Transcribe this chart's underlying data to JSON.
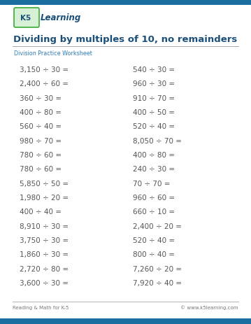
{
  "title": "Dividing by multiples of 10, no remainders",
  "subtitle": "Division Practice Worksheet",
  "footer_left": "Reading & Math for K-5",
  "footer_right": "© www.k5learning.com",
  "logo_k5": "K5",
  "logo_learning": "Learning",
  "left_problems": [
    "3,150 ÷ 30 =",
    "2,400 ÷ 60 =",
    "360 ÷ 30 =",
    "400 ÷ 80 =",
    "560 ÷ 40 =",
    "980 ÷ 70 =",
    "780 ÷ 60 =",
    "780 ÷ 60 =",
    "5,850 ÷ 50 =",
    "1,980 ÷ 20 =",
    "400 ÷ 40 =",
    "8,910 ÷ 30 =",
    "3,750 ÷ 30 =",
    "1,860 ÷ 30 =",
    "2,720 ÷ 80 =",
    "3,600 ÷ 30 ="
  ],
  "right_problems": [
    "540 ÷ 30 =",
    "960 ÷ 30 =",
    "910 ÷ 70 =",
    "400 ÷ 50 =",
    "520 ÷ 40 =",
    "8,050 ÷ 70 =",
    "400 ÷ 80 =",
    "240 ÷ 30 =",
    "70 ÷ 70 =",
    "960 ÷ 60 =",
    "660 ÷ 10 =",
    "2,400 ÷ 20 =",
    "520 ÷ 40 =",
    "800 ÷ 40 =",
    "7,260 ÷ 20 =",
    "7,920 ÷ 40 ="
  ],
  "title_color": "#1a4f7a",
  "subtitle_color": "#2e7db5",
  "problem_color": "#555555",
  "footer_color": "#777777",
  "border_color": "#1a6ea0",
  "title_fontsize": 9.5,
  "subtitle_fontsize": 5.8,
  "problem_fontsize": 7.5,
  "footer_fontsize": 5.0,
  "logo_k5_fontsize": 7.5,
  "logo_learning_fontsize": 8.5
}
